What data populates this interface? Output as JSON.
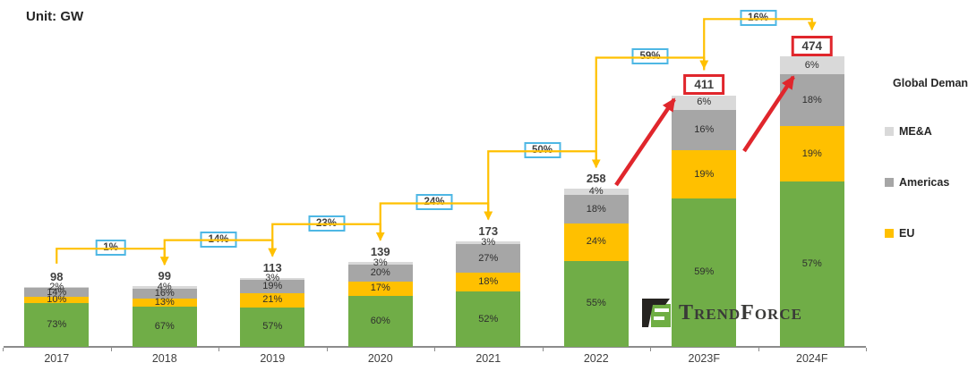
{
  "unit_label": "Unit: GW",
  "legend": {
    "title": "Global Demand",
    "items": [
      {
        "label": "ME&A",
        "color": "#D9D9D9"
      },
      {
        "label": "Americas",
        "color": "#A6A6A6"
      },
      {
        "label": "EU",
        "color": "#FFC000"
      }
    ]
  },
  "logo_text": "TrendForce",
  "colors": {
    "green_series": "#70AD47",
    "eu_yellow": "#FFC000",
    "americas_gray": "#A6A6A6",
    "mea_light_gray": "#D9D9D9",
    "connector_yellow": "#FFC000",
    "growth_box_border_blue": "#4EB7E4",
    "highlight_red": "#E0262C",
    "axis_gray": "#8C8C8C",
    "text_dark": "#3F3F3F"
  },
  "chart_data": {
    "type": "bar",
    "stacked": true,
    "unit": "GW",
    "title": "Global Demand",
    "categories": [
      "2017",
      "2018",
      "2019",
      "2020",
      "2021",
      "2022",
      "2023F",
      "2024F"
    ],
    "totals_gw": [
      98,
      99,
      113,
      139,
      173,
      258,
      411,
      474
    ],
    "series": [
      {
        "legend_label": null,
        "color_key": "green_series",
        "values_pct": [
          73,
          67,
          57,
          60,
          52,
          55,
          59,
          57
        ]
      },
      {
        "legend_label": "EU",
        "color_key": "eu_yellow",
        "values_pct": [
          10,
          13,
          21,
          17,
          18,
          24,
          19,
          19
        ]
      },
      {
        "legend_label": "Americas",
        "color_key": "americas_gray",
        "values_pct": [
          14,
          16,
          19,
          20,
          27,
          18,
          16,
          18
        ]
      },
      {
        "legend_label": "ME&A",
        "color_key": "mea_light_gray",
        "values_pct": [
          2,
          4,
          3,
          3,
          3,
          4,
          6,
          6
        ]
      }
    ],
    "yoy_growth_pct": [
      1,
      14,
      23,
      24,
      50,
      59,
      16
    ],
    "highlighted_categories": [
      "2023F",
      "2024F"
    ],
    "red_arrow_annotations": [
      {
        "points_to": "2023F"
      },
      {
        "points_to": "2024F"
      }
    ],
    "legend_position": "right",
    "grid": false
  }
}
